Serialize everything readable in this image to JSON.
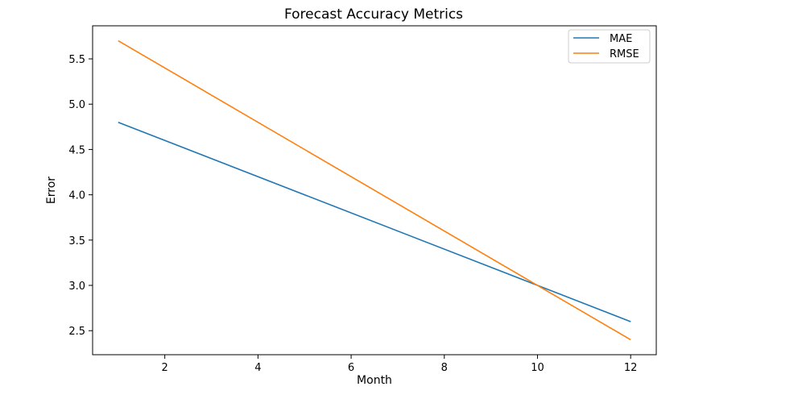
{
  "chart_data": {
    "type": "line",
    "title": "Forecast Accuracy Metrics",
    "xlabel": "Month",
    "ylabel": "Error",
    "xlim": [
      0.45,
      12.55
    ],
    "ylim": [
      2.235,
      5.865
    ],
    "xticks": [
      2,
      4,
      6,
      8,
      10,
      12
    ],
    "yticks": [
      2.5,
      3.0,
      3.5,
      4.0,
      4.5,
      5.0,
      5.5
    ],
    "ytick_labels": [
      "2.5",
      "3.0",
      "3.5",
      "4.0",
      "4.5",
      "5.0",
      "5.5"
    ],
    "grid": false,
    "legend_position": "top-right",
    "series": [
      {
        "name": "MAE",
        "color": "#1f77b4",
        "x": [
          1,
          10,
          12
        ],
        "y": [
          4.8,
          3.0,
          2.6
        ]
      },
      {
        "name": "RMSE",
        "color": "#ff7f0e",
        "x": [
          1,
          10,
          12
        ],
        "y": [
          5.7,
          3.0,
          2.4
        ]
      }
    ]
  }
}
